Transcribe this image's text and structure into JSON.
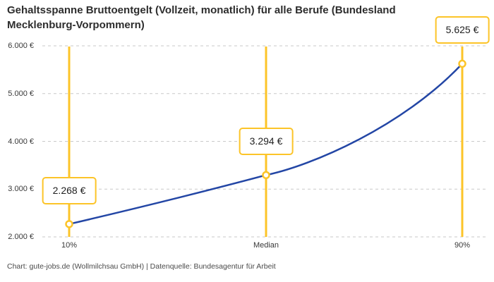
{
  "title": "Gehaltsspanne Bruttoentgelt (Vollzeit, monatlich) für alle Berufe (Bundesland Mecklenburg-Vorpommern)",
  "footer": "Chart: gute-jobs.de (Wollmilchsau GmbH) | Datenquelle: Bundesagentur für Arbeit",
  "colors": {
    "accent_yellow": "#fcc428",
    "line_blue": "#2346a5",
    "grid": "#c9c9c9",
    "title_text": "#2d2d2d",
    "axis_text": "#383838",
    "footer_text": "#4a4a4a",
    "marker_fill": "#ffffff"
  },
  "chart_data": {
    "type": "line",
    "title": "Gehaltsspanne Bruttoentgelt (Vollzeit, monatlich) für alle Berufe (Bundesland Mecklenburg-Vorpommern)",
    "categories": [
      "10%",
      "Median",
      "90%"
    ],
    "values": [
      2268,
      3294,
      5625
    ],
    "value_labels": [
      "2.268 €",
      "3.294 €",
      "5.625 €"
    ],
    "y_tick_values": [
      2000,
      3000,
      4000,
      5000,
      6000
    ],
    "y_tick_labels": [
      "2.000 €",
      "3.000 €",
      "4.000 €",
      "5.000 €",
      "6.000 €"
    ],
    "ylim": [
      2000,
      6000
    ],
    "xlabel": "",
    "ylabel": "",
    "grid": "horizontal-dashed",
    "legend": "none"
  }
}
